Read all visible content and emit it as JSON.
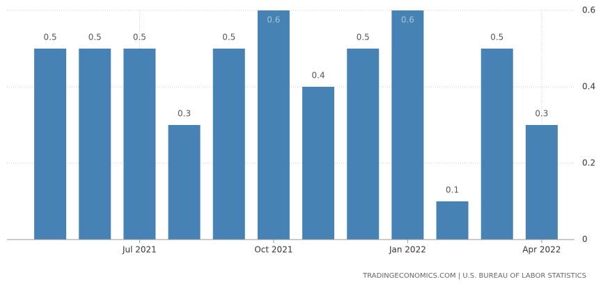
{
  "chart_data": {
    "type": "bar",
    "categories": [
      null,
      null,
      "Jul 2021",
      null,
      null,
      "Oct 2021",
      null,
      null,
      "Jan 2022",
      null,
      null,
      "Apr 2022"
    ],
    "values": [
      0.5,
      0.5,
      0.5,
      0.3,
      0.5,
      0.6,
      0.4,
      0.5,
      0.6,
      0.1,
      0.5,
      0.3
    ],
    "color": "#4682b4",
    "ylim": [
      0,
      0.6
    ],
    "yticks": [
      0,
      0.2,
      0.4,
      0.6
    ],
    "grid": true,
    "source": "TRADINGECONOMICS.COM | U.S. BUREAU OF LABOR STATISTICS"
  }
}
